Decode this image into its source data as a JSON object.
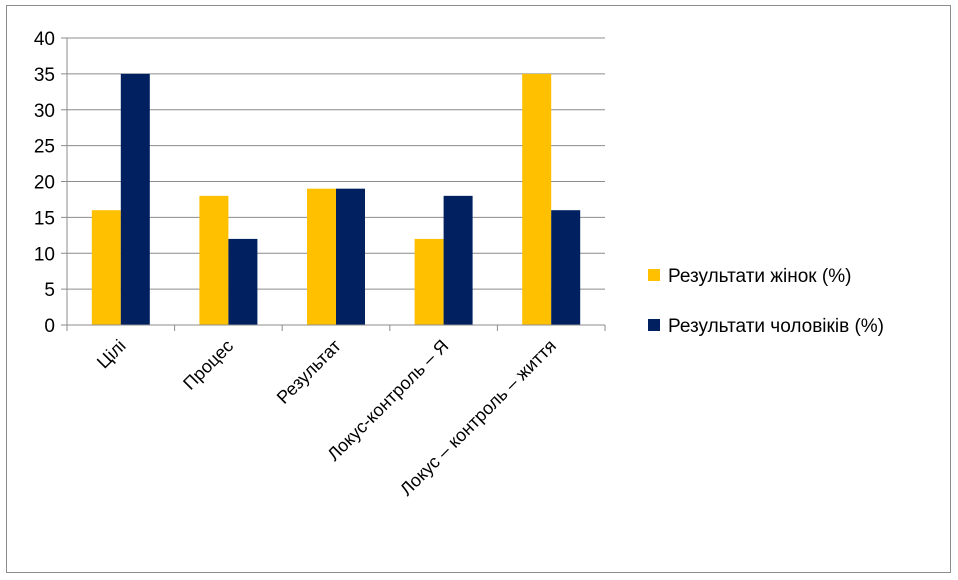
{
  "chart_data": {
    "type": "bar",
    "categories": [
      "Цілі",
      "Процес",
      "Результат",
      "Локус-контроль – Я",
      "Локус – контроль – життя"
    ],
    "series": [
      {
        "name": "Результати жінок (%)",
        "color": "#FFC000",
        "values": [
          16,
          18,
          19,
          12,
          35
        ]
      },
      {
        "name": "Результати чоловіків (%)",
        "color": "#002060",
        "values": [
          35,
          12,
          19,
          18,
          16
        ]
      }
    ],
    "ylim": [
      0,
      40
    ],
    "yticks": [
      0,
      5,
      10,
      15,
      20,
      25,
      30,
      35,
      40
    ],
    "grid": true,
    "legend_position": "right",
    "title": "",
    "xlabel": "",
    "ylabel": ""
  }
}
